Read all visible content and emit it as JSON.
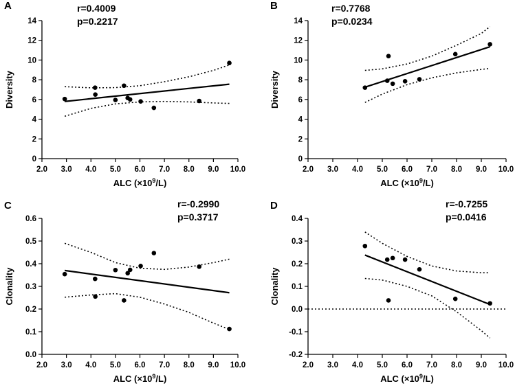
{
  "chart_data": [
    {
      "type": "scatter",
      "panel": "A",
      "xlabel": "ALC (×10⁹/L)",
      "xlabel_parts": [
        "ALC (×10",
        "9",
        "/L)"
      ],
      "ylabel": "Diversity",
      "xlim": [
        2.0,
        10.0
      ],
      "ylim": [
        0,
        14
      ],
      "xticks": [
        2.0,
        3.0,
        4.0,
        5.0,
        6.0,
        7.0,
        8.0,
        9.0,
        10.0
      ],
      "xtick_labels": [
        "2.0",
        "3.0",
        "4.0",
        "5.0",
        "6.0",
        "7.0",
        "8.0",
        "9.0",
        "10.0"
      ],
      "yticks": [
        0,
        2,
        4,
        6,
        8,
        10,
        12,
        14
      ],
      "ytick_labels": [
        "0",
        "2",
        "4",
        "6",
        "8",
        "10",
        "12",
        "14"
      ],
      "stats": [
        "r=0.4009",
        "p=0.2217"
      ],
      "points": [
        [
          2.93,
          6.05
        ],
        [
          4.17,
          7.2
        ],
        [
          4.18,
          6.5
        ],
        [
          5.0,
          5.95
        ],
        [
          5.35,
          7.4
        ],
        [
          5.5,
          6.15
        ],
        [
          5.6,
          6.0
        ],
        [
          6.03,
          5.8
        ],
        [
          6.57,
          5.15
        ],
        [
          8.42,
          5.85
        ],
        [
          9.65,
          9.7
        ]
      ],
      "fit": [
        [
          2.93,
          5.8
        ],
        [
          9.65,
          7.55
        ]
      ],
      "ci_upper": [
        [
          2.93,
          7.3
        ],
        [
          4.0,
          7.18
        ],
        [
          5.0,
          7.2
        ],
        [
          6.0,
          7.4
        ],
        [
          7.0,
          7.8
        ],
        [
          8.0,
          8.3
        ],
        [
          9.0,
          8.95
        ],
        [
          9.65,
          9.5
        ]
      ],
      "ci_lower": [
        [
          2.93,
          4.3
        ],
        [
          4.0,
          5.1
        ],
        [
          5.0,
          5.55
        ],
        [
          6.0,
          5.75
        ],
        [
          7.0,
          5.8
        ],
        [
          8.0,
          5.75
        ],
        [
          9.0,
          5.65
        ],
        [
          9.65,
          5.6
        ]
      ],
      "ref_line": null
    },
    {
      "type": "scatter",
      "panel": "B",
      "xlabel": "ALC (×10⁹/L)",
      "xlabel_parts": [
        "ALC (×10",
        "9",
        "/L)"
      ],
      "ylabel": "Diversity",
      "xlim": [
        2.0,
        10.0
      ],
      "ylim": [
        0,
        14
      ],
      "xticks": [
        2.0,
        3.0,
        4.0,
        5.0,
        6.0,
        7.0,
        8.0,
        9.0,
        10.0
      ],
      "xtick_labels": [
        "2.0",
        "3.0",
        "4.0",
        "5.0",
        "6.0",
        "7.0",
        "8.0",
        "9.0",
        "10.0"
      ],
      "yticks": [
        0,
        2,
        4,
        6,
        8,
        10,
        12,
        14
      ],
      "ytick_labels": [
        "0",
        "2",
        "4",
        "6",
        "8",
        "10",
        "12",
        "14"
      ],
      "stats": [
        "r=0.7768",
        "p=0.0234"
      ],
      "points": [
        [
          4.3,
          7.2
        ],
        [
          5.2,
          7.9
        ],
        [
          5.25,
          10.4
        ],
        [
          5.42,
          7.6
        ],
        [
          5.92,
          7.85
        ],
        [
          6.5,
          8.05
        ],
        [
          7.95,
          10.6
        ],
        [
          9.35,
          11.6
        ]
      ],
      "fit": [
        [
          4.3,
          7.25
        ],
        [
          9.35,
          11.35
        ]
      ],
      "ci_upper": [
        [
          4.3,
          8.95
        ],
        [
          5.0,
          9.1
        ],
        [
          6.0,
          9.6
        ],
        [
          7.0,
          10.4
        ],
        [
          8.0,
          11.5
        ],
        [
          9.0,
          12.7
        ],
        [
          9.35,
          13.4
        ]
      ],
      "ci_lower": [
        [
          4.3,
          5.7
        ],
        [
          5.0,
          6.55
        ],
        [
          6.0,
          7.5
        ],
        [
          7.0,
          8.2
        ],
        [
          8.0,
          8.7
        ],
        [
          9.0,
          9.05
        ],
        [
          9.35,
          9.15
        ]
      ],
      "ref_line": null
    },
    {
      "type": "scatter",
      "panel": "C",
      "xlabel": "ALC (×10⁹/L)",
      "xlabel_parts": [
        "ALC (×10",
        "9",
        "/L)"
      ],
      "ylabel": "Clonality",
      "xlim": [
        2.0,
        10.0
      ],
      "ylim": [
        0,
        0.6
      ],
      "xticks": [
        2.0,
        3.0,
        4.0,
        5.0,
        6.0,
        7.0,
        8.0,
        9.0,
        10.0
      ],
      "xtick_labels": [
        "2.0",
        "3.0",
        "4.0",
        "5.0",
        "6.0",
        "7.0",
        "8.0",
        "9.0",
        "10.0"
      ],
      "yticks": [
        0,
        0.1,
        0.2,
        0.3,
        0.4,
        0.5,
        0.6
      ],
      "ytick_labels": [
        "0.0",
        "0.1",
        "0.2",
        "0.3",
        "0.4",
        "0.5",
        "0.6"
      ],
      "stats": [
        "r=-0.2990",
        "p=0.3717"
      ],
      "points": [
        [
          2.93,
          0.354
        ],
        [
          4.17,
          0.333
        ],
        [
          4.18,
          0.255
        ],
        [
          5.0,
          0.372
        ],
        [
          5.35,
          0.238
        ],
        [
          5.5,
          0.358
        ],
        [
          5.6,
          0.373
        ],
        [
          6.03,
          0.39
        ],
        [
          6.57,
          0.447
        ],
        [
          8.42,
          0.387
        ],
        [
          9.65,
          0.112
        ]
      ],
      "fit": [
        [
          2.93,
          0.37
        ],
        [
          9.65,
          0.272
        ]
      ],
      "ci_upper": [
        [
          2.93,
          0.49
        ],
        [
          4.0,
          0.45
        ],
        [
          5.0,
          0.405
        ],
        [
          6.0,
          0.38
        ],
        [
          7.0,
          0.375
        ],
        [
          8.0,
          0.385
        ],
        [
          9.0,
          0.405
        ],
        [
          9.65,
          0.42
        ]
      ],
      "ci_lower": [
        [
          2.93,
          0.252
        ],
        [
          4.0,
          0.262
        ],
        [
          5.0,
          0.268
        ],
        [
          6.0,
          0.252
        ],
        [
          7.0,
          0.222
        ],
        [
          8.0,
          0.185
        ],
        [
          9.0,
          0.138
        ],
        [
          9.65,
          0.11
        ]
      ],
      "ref_line": null
    },
    {
      "type": "scatter",
      "panel": "D",
      "xlabel": "ALC (×10⁹/L)",
      "xlabel_parts": [
        "ALC (×10",
        "9",
        "/L)"
      ],
      "ylabel": "Clonality",
      "xlim": [
        2.0,
        10.0
      ],
      "ylim": [
        -0.2,
        0.4
      ],
      "xticks": [
        2.0,
        3.0,
        4.0,
        5.0,
        6.0,
        7.0,
        8.0,
        9.0,
        10.0
      ],
      "xtick_labels": [
        "2.0",
        "3.0",
        "4.0",
        "5.0",
        "6.0",
        "7.0",
        "8.0",
        "9.0",
        "10.0"
      ],
      "yticks": [
        -0.2,
        -0.1,
        0.0,
        0.1,
        0.2,
        0.3,
        0.4
      ],
      "ytick_labels": [
        "-0.2",
        "-0.1",
        "0.0",
        "0.1",
        "0.2",
        "0.3",
        "0.4"
      ],
      "stats": [
        "r=-0.7255",
        "p=0.0416"
      ],
      "points": [
        [
          4.3,
          0.278
        ],
        [
          5.2,
          0.218
        ],
        [
          5.25,
          0.038
        ],
        [
          5.42,
          0.225
        ],
        [
          5.92,
          0.218
        ],
        [
          6.5,
          0.175
        ],
        [
          7.95,
          0.045
        ],
        [
          9.35,
          0.025
        ]
      ],
      "fit": [
        [
          4.3,
          0.238
        ],
        [
          9.35,
          0.02
        ]
      ],
      "ci_upper": [
        [
          4.3,
          0.34
        ],
        [
          5.0,
          0.29
        ],
        [
          6.0,
          0.232
        ],
        [
          7.0,
          0.19
        ],
        [
          8.0,
          0.168
        ],
        [
          9.0,
          0.16
        ],
        [
          9.35,
          0.16
        ]
      ],
      "ci_lower": [
        [
          4.3,
          0.135
        ],
        [
          5.0,
          0.128
        ],
        [
          6.0,
          0.1
        ],
        [
          7.0,
          0.058
        ],
        [
          8.0,
          -0.012
        ],
        [
          9.0,
          -0.095
        ],
        [
          9.35,
          -0.128
        ]
      ],
      "ref_line": 0.0
    }
  ]
}
